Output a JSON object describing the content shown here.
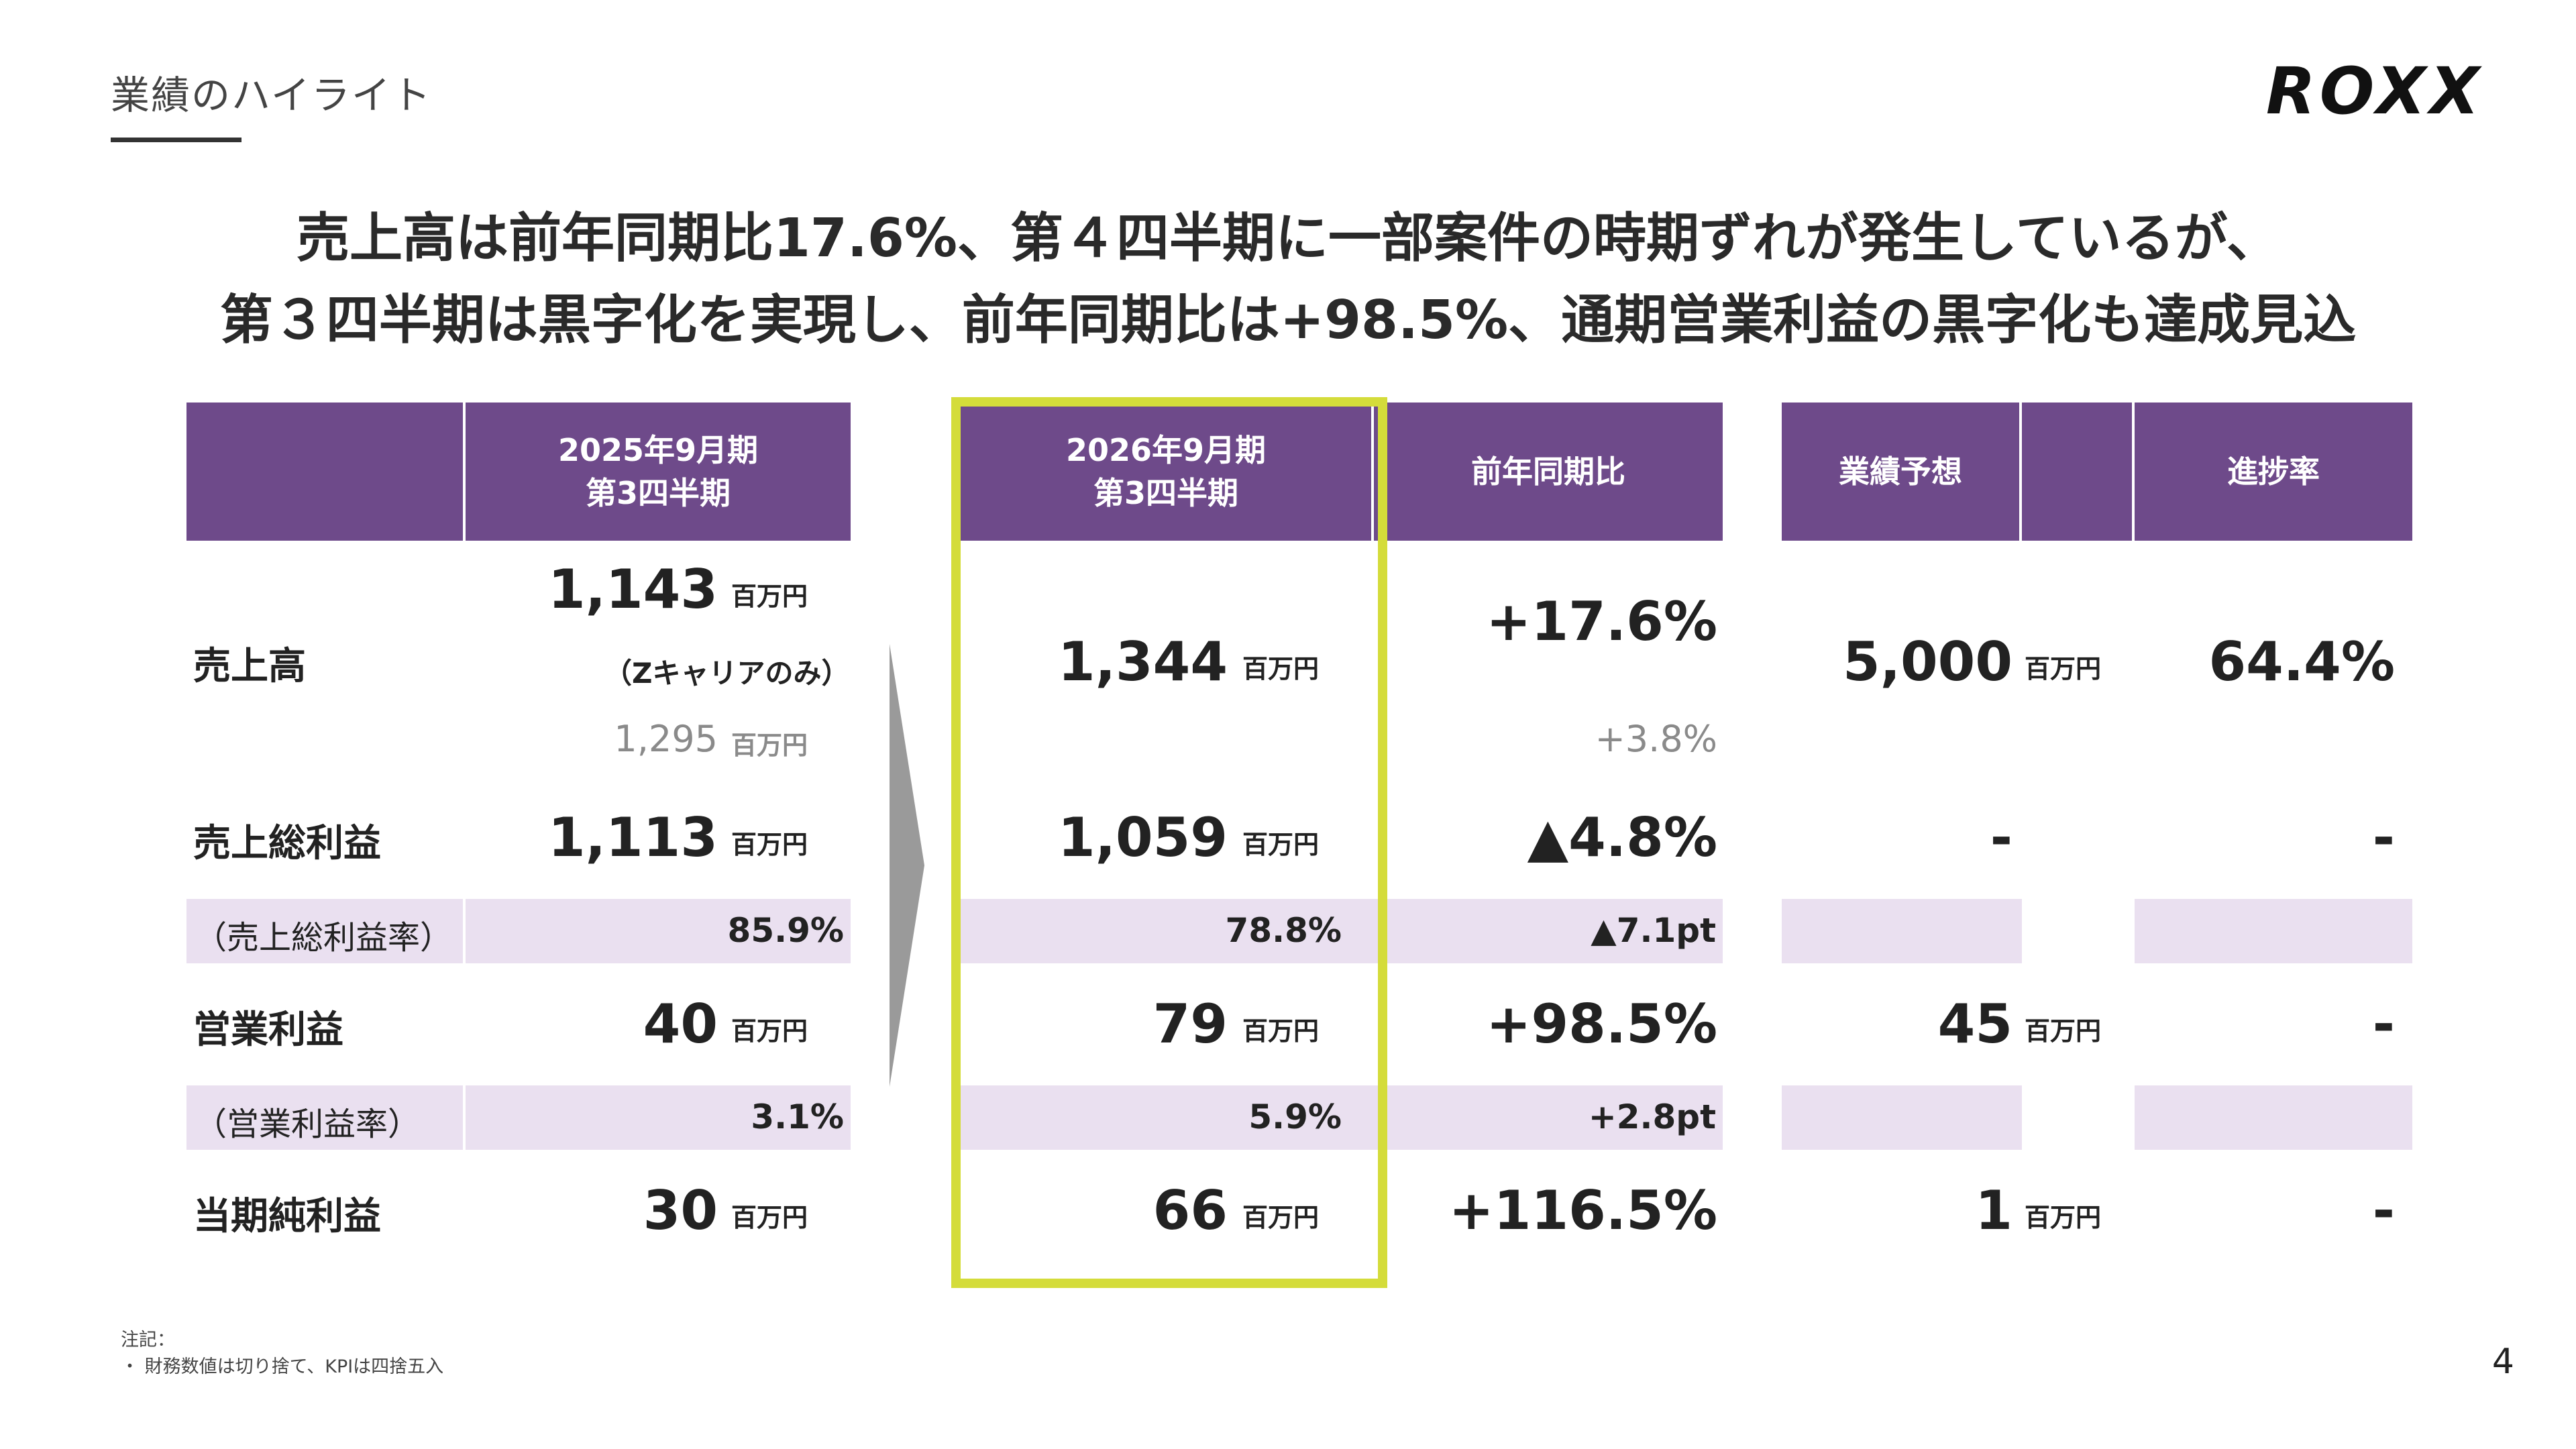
{
  "header": {
    "section_title": "業績のハイライト",
    "logo_text": "ROXX",
    "page_number": "4"
  },
  "headline": {
    "line1": "売上高は前年同期比17.6%、第４四半期に一部案件の時期ずれが発生しているが、",
    "line2": "第３四半期は黒字化を実現し、前年同期比は+98.5%、通期営業利益の黒字化も達成見込"
  },
  "table": {
    "columns": {
      "prev_line1": "2025年9月期",
      "prev_line2": "第3四半期",
      "curr_line1": "2026年9月期",
      "curr_line2": "第3四半期",
      "yoy": "前年同期比",
      "forecast": "業績予想",
      "progress": "進捗率"
    },
    "unit": "百万円",
    "rows": {
      "revenue": {
        "label": "売上高",
        "prev": "1,143",
        "prev_note": "（Zキャリアのみ）",
        "prev_total": "1,295",
        "curr": "1,344",
        "yoy": "+17.6%",
        "yoy_total": "+3.8%",
        "forecast": "5,000",
        "progress": "64.4%"
      },
      "gross_profit": {
        "label": "売上総利益",
        "prev": "1,113",
        "curr": "1,059",
        "yoy": "▲4.8%",
        "forecast": "-",
        "progress": "-"
      },
      "gross_margin": {
        "label": "（売上総利益率）",
        "prev": "85.9%",
        "curr": "78.8%",
        "yoy": "▲7.1pt"
      },
      "operating_profit": {
        "label": "営業利益",
        "prev": "40",
        "curr": "79",
        "yoy": "+98.5%",
        "forecast": "45",
        "progress": "-"
      },
      "operating_margin": {
        "label": "（営業利益率）",
        "prev": "3.1%",
        "curr": "5.9%",
        "yoy": "+2.8pt"
      },
      "net_income": {
        "label": "当期純利益",
        "prev": "30",
        "curr": "66",
        "yoy": "+116.5%",
        "forecast": "1",
        "progress": "-"
      }
    }
  },
  "notes": {
    "title": "注記：",
    "item1": "・ 財務数値は切り捨て、KPIは四捨五入"
  },
  "colors": {
    "header_purple": "#6e4a8a",
    "stripe_lavender": "#eae0f0",
    "highlight_yellow": "#d4dc3a",
    "arrow_grey": "#9a9a9a"
  }
}
